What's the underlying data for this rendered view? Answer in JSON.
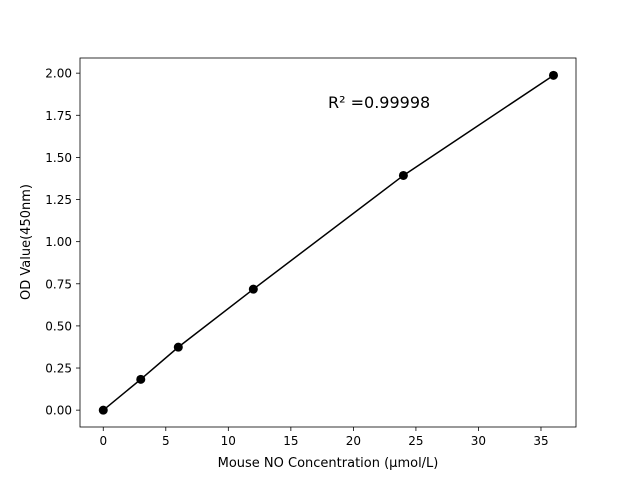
{
  "chart_data": {
    "type": "line",
    "title": "",
    "xlabel": "Mouse NO Concentration (μmol/L)",
    "ylabel": "OD Value(450nm)",
    "x": [
      0,
      3,
      6,
      12,
      24,
      36
    ],
    "series": [
      {
        "values": [
          0.0,
          0.183,
          0.374,
          0.718,
          1.393,
          1.987
        ],
        "color": "#000000",
        "marker": "circle"
      }
    ],
    "xlim": [
      -1.86,
      37.8
    ],
    "ylim": [
      -0.1,
      2.09
    ],
    "xticks": [
      0,
      5,
      10,
      15,
      20,
      25,
      30,
      35
    ],
    "xtick_labels": [
      "0",
      "5",
      "10",
      "15",
      "20",
      "25",
      "30",
      "35"
    ],
    "yticks": [
      0,
      0.25,
      0.5,
      0.75,
      1.0,
      1.25,
      1.5,
      1.75,
      2.0
    ],
    "ytick_labels": [
      "0.00",
      "0.25",
      "0.50",
      "0.75",
      "1.00",
      "1.25",
      "1.50",
      "1.75",
      "2.00"
    ],
    "annotation": "R² =0.99998",
    "grid": false,
    "legend": "none"
  }
}
